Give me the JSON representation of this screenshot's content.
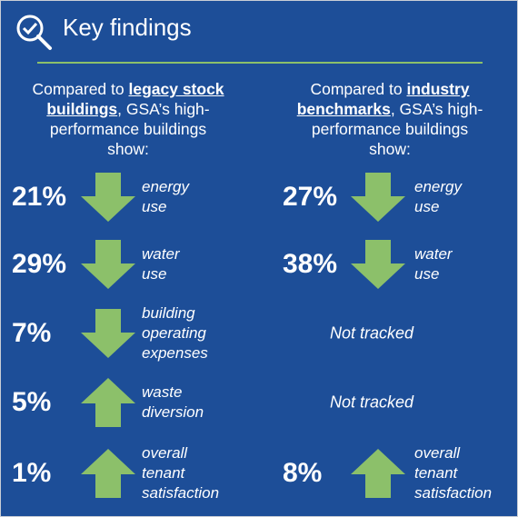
{
  "header": {
    "title": "Key findings"
  },
  "columns": [
    {
      "intro": {
        "before": "Compared to ",
        "link": "legacy stock buildings",
        "after": ", GSA’s high-performance buildings show:"
      },
      "rows": [
        {
          "value": "21%",
          "direction": "down",
          "label": [
            "energy",
            "use"
          ]
        },
        {
          "value": "29%",
          "direction": "down",
          "label": [
            "water",
            "use"
          ]
        },
        {
          "value": "7%",
          "direction": "down",
          "label": [
            "building",
            "operating",
            "expenses"
          ]
        },
        {
          "value": "5%",
          "direction": "up",
          "label": [
            "waste",
            "diversion"
          ]
        },
        {
          "value": "1%",
          "direction": "up",
          "label": [
            "overall",
            "tenant",
            "satisfaction"
          ]
        }
      ]
    },
    {
      "intro": {
        "before": "Compared to ",
        "link": "industry benchmarks",
        "after": ", GSA’s high-performance buildings show:"
      },
      "rows": [
        {
          "value": "27%",
          "direction": "down",
          "label": [
            "energy",
            "use"
          ]
        },
        {
          "value": "38%",
          "direction": "down",
          "label": [
            "water",
            "use"
          ]
        },
        {
          "note": "Not tracked"
        },
        {
          "note": "Not tracked"
        },
        {
          "value": "8%",
          "direction": "up",
          "label": [
            "overall",
            "tenant",
            "satisfaction"
          ]
        }
      ]
    }
  ]
}
